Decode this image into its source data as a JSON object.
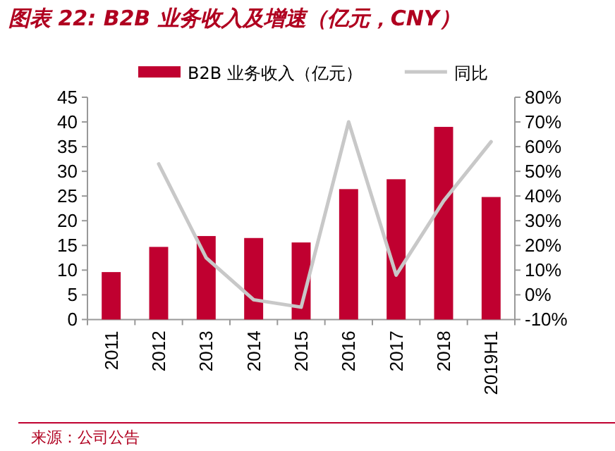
{
  "chart_data": {
    "type": "bar",
    "title": "图表 22: B2B 业务收入及增速（亿元，CNY）",
    "categories": [
      "2011",
      "2012",
      "2013",
      "2014",
      "2015",
      "2016",
      "2017",
      "2018",
      "2019H1"
    ],
    "series": [
      {
        "name": "B2B 业务收入（亿元）",
        "color": "#c00030",
        "values": [
          9.6,
          14.7,
          16.9,
          16.5,
          15.6,
          26.4,
          28.4,
          39.0,
          24.8
        ]
      },
      {
        "name": "同比",
        "type": "line",
        "axis": "y2",
        "color": "#c8c8c8",
        "values": [
          null,
          53,
          15,
          -2,
          -5,
          70,
          8,
          38,
          62
        ]
      }
    ],
    "ylim": [
      0,
      45
    ],
    "yticks": [
      0,
      5,
      10,
      15,
      20,
      25,
      30,
      35,
      40,
      45
    ],
    "y2lim": [
      -10,
      80
    ],
    "y2ticks": [
      {
        "value": -10,
        "label": "-10%"
      },
      {
        "value": 0,
        "label": "0%"
      },
      {
        "value": 10,
        "label": "10%"
      },
      {
        "value": 20,
        "label": "20%"
      },
      {
        "value": 30,
        "label": "30%"
      },
      {
        "value": 40,
        "label": "40%"
      },
      {
        "value": 50,
        "label": "50%"
      },
      {
        "value": 60,
        "label": "60%"
      },
      {
        "value": 70,
        "label": "70%"
      },
      {
        "value": 80,
        "label": "80%"
      }
    ],
    "legend": "top",
    "grid": false,
    "marker": "none",
    "line_style": "solid",
    "annotations": [
      "来源：公司公告"
    ]
  }
}
